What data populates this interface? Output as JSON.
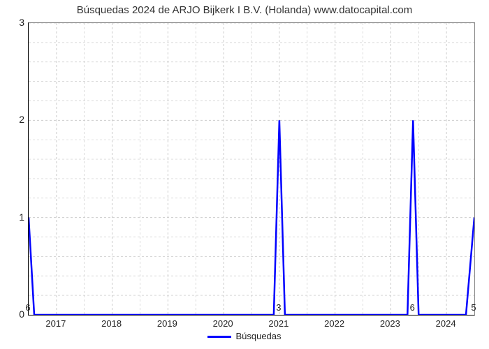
{
  "chart": {
    "type": "line",
    "title": "Búsquedas 2024 de ARJO Bijkerk I B.V. (Holanda) www.datocapital.com",
    "title_fontsize": 15,
    "background_color": "#ffffff",
    "plot_border_color_main": "#000000",
    "plot_border_color_light": "#888888",
    "grid_color": "#cccccc",
    "grid_dash": "3,3",
    "ylim": [
      0,
      3
    ],
    "yticks": [
      0,
      1,
      2,
      3
    ],
    "ytick_fontsize": 14,
    "xlim": [
      2016.5,
      2024.5
    ],
    "xticks": [
      2017,
      2018,
      2019,
      2020,
      2021,
      2022,
      2023,
      2024
    ],
    "xtick_labels": [
      "2017",
      "2018",
      "2019",
      "2020",
      "2021",
      "2022",
      "2023",
      "2024"
    ],
    "xtick_fontsize": 13,
    "series": {
      "name": "Búsquedas",
      "color": "#0000ff",
      "line_width": 2.5,
      "points": [
        {
          "x": 2016.5,
          "y": 1
        },
        {
          "x": 2016.6,
          "y": 0
        },
        {
          "x": 2020.9,
          "y": 0
        },
        {
          "x": 2021.0,
          "y": 2
        },
        {
          "x": 2021.1,
          "y": 0
        },
        {
          "x": 2023.3,
          "y": 0
        },
        {
          "x": 2023.4,
          "y": 2
        },
        {
          "x": 2023.5,
          "y": 0
        },
        {
          "x": 2024.35,
          "y": 0
        },
        {
          "x": 2024.5,
          "y": 1
        }
      ]
    },
    "data_labels": [
      {
        "x": 2016.5,
        "y": 0,
        "text": "6"
      },
      {
        "x": 2021.0,
        "y": 0,
        "text": "3"
      },
      {
        "x": 2023.4,
        "y": 0,
        "text": "6"
      },
      {
        "x": 2024.5,
        "y": 0,
        "text": "5"
      }
    ],
    "legend": {
      "label": "Búsquedas",
      "line_color": "#0000ff",
      "line_width": 3,
      "fontsize": 13
    }
  }
}
